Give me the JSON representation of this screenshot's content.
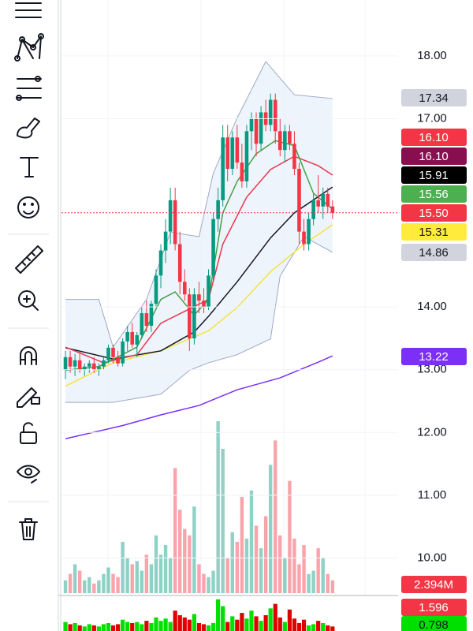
{
  "chart_data": {
    "type": "candlestick",
    "ylim": [
      9.44,
      18.89
    ],
    "yticks": [
      {
        "value": 18,
        "label": "18.00"
      },
      {
        "value": 17,
        "label": "17.00"
      },
      {
        "value": 14,
        "label": "14.00"
      },
      {
        "value": 13,
        "label": "13.00"
      },
      {
        "value": 12,
        "label": "12.00"
      },
      {
        "value": 11,
        "label": "11.00"
      },
      {
        "value": 10,
        "label": "10.00"
      }
    ],
    "up_color": "#089981",
    "down_color": "#f23645",
    "ohlc": [
      [
        13.0,
        13.3,
        12.85,
        13.2
      ],
      [
        13.2,
        13.3,
        12.95,
        13.05
      ],
      [
        13.05,
        13.25,
        12.9,
        13.15
      ],
      [
        13.15,
        13.3,
        12.95,
        13.0
      ],
      [
        13.0,
        13.1,
        12.9,
        13.05
      ],
      [
        13.05,
        13.15,
        12.95,
        13.1
      ],
      [
        13.1,
        13.2,
        12.95,
        13.0
      ],
      [
        13.0,
        13.1,
        12.9,
        13.05
      ],
      [
        13.05,
        13.2,
        13.0,
        13.15
      ],
      [
        13.15,
        13.4,
        13.1,
        13.35
      ],
      [
        13.35,
        13.4,
        13.1,
        13.2
      ],
      [
        13.2,
        13.3,
        13.05,
        13.1
      ],
      [
        13.1,
        13.5,
        13.05,
        13.45
      ],
      [
        13.45,
        13.7,
        13.3,
        13.6
      ],
      [
        13.6,
        13.75,
        13.35,
        13.4
      ],
      [
        13.4,
        13.6,
        13.2,
        13.55
      ],
      [
        13.55,
        14.0,
        13.5,
        13.9
      ],
      [
        13.9,
        14.1,
        13.6,
        13.7
      ],
      [
        13.7,
        14.1,
        13.6,
        14.05
      ],
      [
        14.05,
        14.6,
        14.0,
        14.5
      ],
      [
        14.5,
        15.0,
        14.3,
        14.9
      ],
      [
        14.9,
        15.4,
        14.7,
        15.2
      ],
      [
        15.2,
        15.9,
        15.0,
        15.7
      ],
      [
        15.7,
        15.9,
        14.9,
        15.0
      ],
      [
        15.0,
        15.2,
        14.2,
        14.4
      ],
      [
        14.4,
        14.6,
        14.1,
        14.2
      ],
      [
        14.2,
        14.3,
        13.3,
        13.5
      ],
      [
        13.5,
        14.3,
        13.4,
        14.2
      ],
      [
        14.2,
        14.4,
        13.9,
        14.1
      ],
      [
        14.1,
        14.3,
        13.9,
        14.0
      ],
      [
        14.0,
        14.6,
        13.95,
        14.5
      ],
      [
        14.5,
        15.5,
        14.4,
        15.4
      ],
      [
        15.4,
        15.9,
        15.2,
        15.7
      ],
      [
        15.7,
        16.9,
        15.6,
        16.7
      ],
      [
        16.7,
        16.9,
        16.0,
        16.2
      ],
      [
        16.2,
        16.8,
        16.1,
        16.7
      ],
      [
        16.7,
        16.9,
        16.2,
        16.3
      ],
      [
        16.3,
        16.6,
        15.9,
        16.0
      ],
      [
        16.0,
        16.9,
        15.9,
        16.8
      ],
      [
        16.8,
        17.1,
        16.5,
        17.0
      ],
      [
        17.0,
        17.1,
        16.4,
        16.6
      ],
      [
        16.6,
        17.2,
        16.5,
        17.1
      ],
      [
        17.1,
        17.3,
        16.8,
        16.9
      ],
      [
        16.9,
        17.4,
        16.8,
        17.3
      ],
      [
        17.3,
        17.4,
        16.6,
        16.8
      ],
      [
        16.8,
        17.0,
        16.4,
        16.5
      ],
      [
        16.5,
        16.9,
        16.3,
        16.8
      ],
      [
        16.8,
        16.9,
        16.5,
        16.6
      ],
      [
        16.6,
        16.8,
        16.1,
        16.2
      ],
      [
        16.2,
        16.3,
        15.0,
        15.2
      ],
      [
        15.2,
        15.4,
        14.9,
        15.0
      ],
      [
        15.0,
        15.5,
        14.9,
        15.4
      ],
      [
        15.4,
        15.8,
        15.3,
        15.7
      ],
      [
        15.7,
        16.1,
        15.5,
        15.6
      ],
      [
        15.6,
        15.9,
        15.4,
        15.8
      ],
      [
        15.8,
        15.9,
        15.5,
        15.6
      ],
      [
        15.6,
        15.7,
        15.4,
        15.5
      ]
    ],
    "band": {
      "color": "#9fa9c8",
      "fill": "#e3ecf8",
      "upper": {
        "x": [
          0,
          7,
          10,
          17,
          22,
          28,
          31,
          36,
          42,
          48,
          56
        ],
        "values": [
          14.12,
          14.12,
          13.36,
          14.12,
          15.19,
          15.12,
          16.13,
          17.01,
          17.91,
          17.38,
          17.32
        ]
      },
      "lower": {
        "x": [
          0,
          10,
          20,
          26,
          30,
          36,
          43,
          45,
          50,
          56
        ],
        "values": [
          12.48,
          12.48,
          12.61,
          12.99,
          13.11,
          13.24,
          13.49,
          14.49,
          15.12,
          14.87
        ]
      }
    },
    "lines": [
      {
        "color": "#7b2ff7",
        "x": [
          0,
          12,
          20,
          28,
          36,
          45,
          53,
          56
        ],
        "values": [
          11.9,
          12.11,
          12.28,
          12.43,
          12.68,
          12.87,
          13.12,
          13.22
        ]
      },
      {
        "color": "#f5e342",
        "x": [
          0,
          10,
          20,
          30,
          36,
          43,
          50,
          56
        ],
        "values": [
          12.74,
          13.11,
          13.3,
          13.62,
          13.99,
          14.56,
          15.0,
          15.31
        ]
      },
      {
        "color": "#131722",
        "x": [
          0,
          10,
          20,
          27,
          30,
          36,
          43,
          48,
          56
        ],
        "values": [
          13.35,
          13.17,
          13.3,
          13.6,
          13.85,
          14.4,
          15.1,
          15.5,
          15.91
        ]
      },
      {
        "color": "#e8384f",
        "x": [
          0,
          8,
          15,
          20,
          25,
          30,
          33,
          38,
          43,
          48,
          53,
          56
        ],
        "values": [
          13.36,
          13.11,
          13.24,
          13.74,
          13.93,
          14.12,
          15.0,
          15.75,
          16.19,
          16.4,
          16.25,
          16.1
        ]
      },
      {
        "color": "#43a047",
        "x": [
          0,
          7,
          15,
          20,
          23,
          27,
          30,
          33,
          36,
          40,
          44,
          48,
          52,
          56
        ],
        "values": [
          12.99,
          13.05,
          13.36,
          14.12,
          14.24,
          13.87,
          14.12,
          15.5,
          16.0,
          16.44,
          16.65,
          16.57,
          15.81,
          15.56
        ]
      }
    ],
    "volume": {
      "ylim": [
        0,
        3
      ],
      "values": [
        0.2,
        0.3,
        0.45,
        0.35,
        0.2,
        0.25,
        0.15,
        0.2,
        0.3,
        0.4,
        0.3,
        0.25,
        0.8,
        0.55,
        0.45,
        0.5,
        0.35,
        0.6,
        0.45,
        0.9,
        0.6,
        0.75,
        0.55,
        1.95,
        1.3,
        1.0,
        0.9,
        1.35,
        0.45,
        0.3,
        0.25,
        0.35,
        2.68,
        2.25,
        0.55,
        0.95,
        0.8,
        1.5,
        0.85,
        1.6,
        1.05,
        0.7,
        1.2,
        2.0,
        2.38,
        0.9,
        0.55,
        1.75,
        0.85,
        0.45,
        0.75,
        0.3,
        0.35,
        0.7,
        0.55,
        0.3,
        0.2
      ]
    },
    "oscillator": {
      "ylim": [
        0.5,
        2.0
      ],
      "values": [
        0.9,
        0.8,
        0.85,
        0.75,
        0.7,
        0.8,
        0.75,
        0.7,
        0.8,
        0.85,
        0.75,
        0.8,
        1.0,
        0.9,
        0.85,
        0.9,
        0.8,
        0.95,
        0.85,
        1.1,
        0.95,
        1.05,
        0.9,
        1.4,
        1.2,
        1.1,
        1.0,
        1.25,
        0.85,
        0.8,
        0.75,
        0.85,
        1.9,
        1.6,
        0.9,
        1.15,
        1.0,
        1.3,
        1.05,
        1.4,
        1.15,
        0.95,
        1.2,
        1.5,
        1.7,
        1.1,
        0.9,
        1.45,
        1.05,
        0.85,
        1.0,
        0.75,
        0.8,
        0.95,
        0.85,
        0.75,
        0.7
      ]
    },
    "badges": [
      {
        "label": "17.34",
        "color": "#d1d4dc",
        "text_color": "#131722"
      },
      {
        "label": "16.10",
        "color": "#f23645",
        "text_color": "#ffffff"
      },
      {
        "label": "16.10",
        "color": "#880e4f",
        "text_color": "#ffffff"
      },
      {
        "label": "15.91",
        "color": "#000000",
        "text_color": "#ffffff"
      },
      {
        "label": "15.56",
        "color": "#4caf50",
        "text_color": "#ffffff"
      },
      {
        "label": "15.50",
        "color": "#f23645",
        "text_color": "#ffffff"
      },
      {
        "label": "15.31",
        "color": "#ffeb3b",
        "text_color": "#131722"
      },
      {
        "label": "14.86",
        "color": "#d1d4dc",
        "text_color": "#131722"
      },
      {
        "label": "13.22",
        "color": "#7b2ff7",
        "text_color": "#ffffff"
      },
      {
        "label": "2.394M",
        "color": "#f23645",
        "text_color": "#ffffff"
      },
      {
        "label": "1.596",
        "color": "#f23645",
        "text_color": "#ffffff"
      },
      {
        "label": "0.798",
        "color": "#00e000",
        "text_color": "#131722"
      }
    ]
  }
}
